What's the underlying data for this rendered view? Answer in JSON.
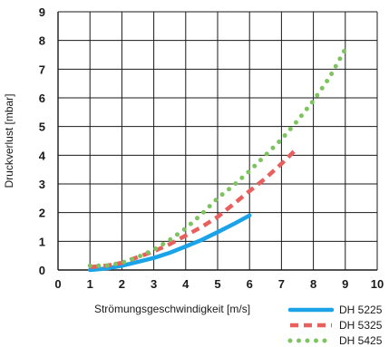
{
  "chart_data": {
    "type": "line",
    "title": "",
    "xlabel": "Strömungsgeschwindigkeit [m/s]",
    "ylabel": "Druckverlust [mbar]",
    "xlim": [
      0,
      10
    ],
    "ylim": [
      0,
      9
    ],
    "xticks": [
      0,
      1,
      2,
      3,
      4,
      5,
      6,
      7,
      8,
      9,
      10
    ],
    "yticks": [
      0,
      1,
      2,
      3,
      4,
      5,
      6,
      7,
      8,
      9
    ],
    "x_tick_labels": [
      "0",
      "1",
      "2",
      "3",
      "4",
      "5",
      "6",
      "7",
      "8",
      "9",
      "10"
    ],
    "y_tick_labels": [
      "0",
      "1",
      "2",
      "3",
      "4",
      "5",
      "6",
      "7",
      "8",
      "9"
    ],
    "grid": true,
    "legend_position": "bottom-right",
    "series": [
      {
        "name": "DH 5225",
        "color": "#1aa3e8",
        "dash": "solid",
        "x": [
          1.0,
          1.5,
          2.0,
          2.5,
          3.0,
          3.5,
          4.0,
          4.5,
          5.0,
          5.5,
          6.0
        ],
        "y": [
          0.0,
          0.05,
          0.15,
          0.28,
          0.42,
          0.6,
          0.82,
          1.05,
          1.32,
          1.6,
          1.9
        ]
      },
      {
        "name": "DH 5325",
        "color": "#e8605e",
        "dash": "dashed",
        "x": [
          1.0,
          1.5,
          2.0,
          2.5,
          3.0,
          3.5,
          4.0,
          4.5,
          5.0,
          5.5,
          6.0,
          6.5,
          7.0,
          7.5
        ],
        "y": [
          0.1,
          0.15,
          0.25,
          0.45,
          0.65,
          0.9,
          1.2,
          1.5,
          1.85,
          2.3,
          2.75,
          3.2,
          3.7,
          4.25
        ]
      },
      {
        "name": "DH 5425",
        "color": "#7dc460",
        "dash": "dotted",
        "x": [
          1.0,
          1.5,
          2.0,
          2.5,
          3.0,
          3.5,
          4.0,
          4.5,
          5.0,
          5.5,
          6.0,
          6.5,
          7.0,
          7.5,
          8.0,
          8.5,
          9.0
        ],
        "y": [
          0.15,
          0.15,
          0.25,
          0.45,
          0.7,
          1.05,
          1.45,
          1.95,
          2.5,
          2.95,
          3.45,
          4.0,
          4.55,
          5.2,
          5.9,
          6.7,
          7.7
        ]
      }
    ]
  }
}
